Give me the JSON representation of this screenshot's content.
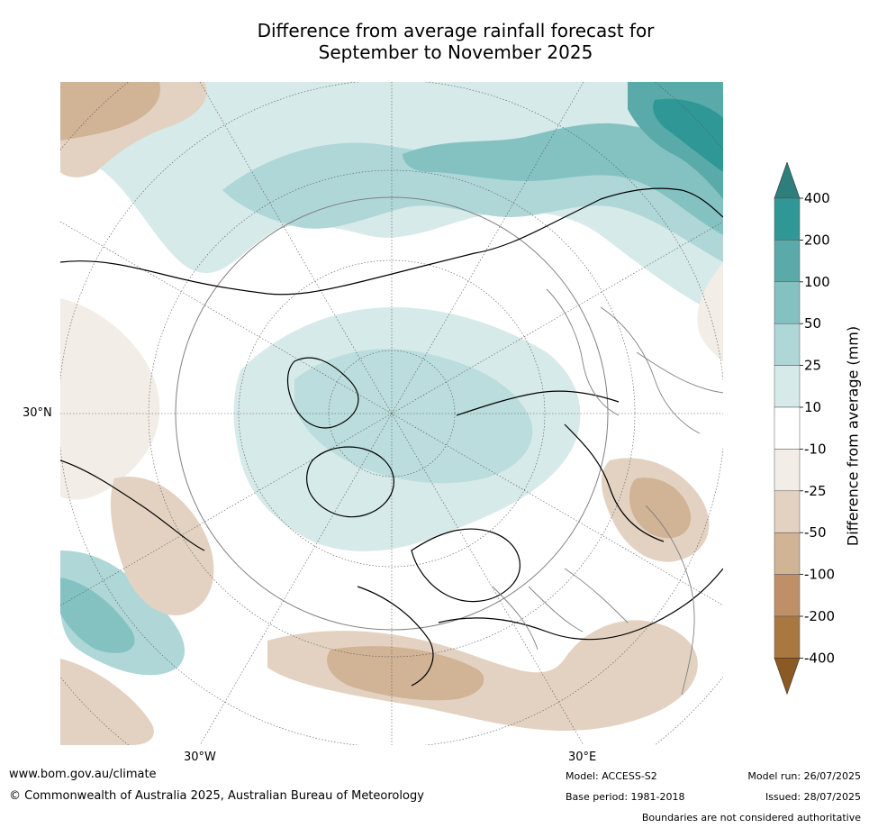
{
  "title": {
    "line1": "Difference from average rainfall forecast for",
    "line2": "September to November 2025"
  },
  "map": {
    "lat_label": "30°N",
    "lon_labels": [
      "30°W",
      "30°E"
    ],
    "colors": {
      "ocean_wet": "#2b8a86",
      "land_line": "#000000",
      "boundary_line": "#808080"
    }
  },
  "colorbar": {
    "title": "Difference from average (mm)",
    "ticks": [
      "400",
      "200",
      "100",
      "50",
      "25",
      "10",
      "-10",
      "-25",
      "-50",
      "-100",
      "-200",
      "-400"
    ],
    "colors": [
      "#2e7f7c",
      "#2f9896",
      "#59aaa9",
      "#84c2c2",
      "#afd7d7",
      "#d6eae9",
      "#ffffff",
      "#f2ede7",
      "#e3d2c2",
      "#d1b395",
      "#bf9068",
      "#a97740",
      "#8b5a24"
    ]
  },
  "footer": {
    "url": "www.bom.gov.au/climate",
    "copyright": "© Commonwealth of Australia 2025, Australian Bureau of Meteorology",
    "model": "Model: ACCESS-S2",
    "base_period": "Base period: 1981-2018",
    "model_run": "Model run: 26/07/2025",
    "issued": "Issued: 28/07/2025",
    "disclaimer": "Boundaries are not considered authoritative"
  }
}
